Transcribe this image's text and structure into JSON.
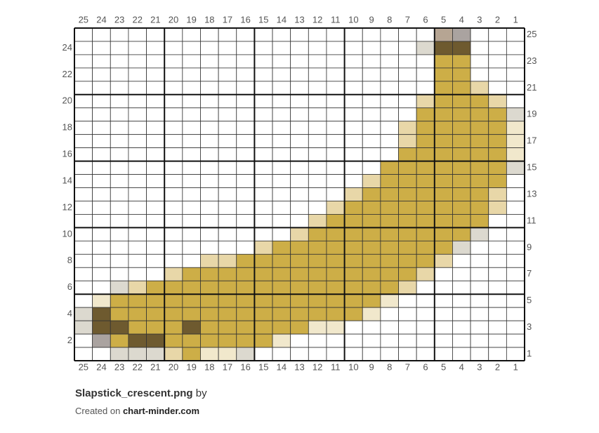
{
  "chart": {
    "columns": [
      25,
      24,
      23,
      22,
      21,
      20,
      19,
      18,
      17,
      16,
      15,
      14,
      13,
      12,
      11,
      10,
      9,
      8,
      7,
      6,
      5,
      4,
      3,
      2,
      1
    ],
    "rows_left": [
      24,
      22,
      20,
      18,
      16,
      14,
      12,
      10,
      8,
      6,
      4,
      2
    ],
    "rows_right": [
      25,
      23,
      21,
      19,
      17,
      15,
      13,
      11,
      9,
      7,
      5,
      3,
      1
    ],
    "palette": {
      ".": "#ffffff",
      "G": "#cdae47",
      "D": "#6e5a2f",
      "L": "#e8d7a8",
      "P": "#f1e8cc",
      "Y": "#dcd9cf",
      "T": "#b6a593",
      "S": "#aaa3a0"
    },
    "cells": [
      "....................TS...",
      "...................YDD...",
      "....................GG...",
      "....................GG...",
      "....................GGL..",
      "...................LGGGL.",
      "...................GGGGGY",
      "..................LGGGGGP",
      "..................LGGGGGP",
      "..................GGGGGGP",
      ".................GGGGGGGY",
      "................LGGGGGGG.",
      "...............LGGGGGGGL.",
      "..............LGGGGGGGGL.",
      ".............LGGGGGGGGG..",
      "............LGGGGGGGGGY..",
      "..........LGGGGGGGGGGY...",
      ".......LLGGGGGGGGGGGL....",
      ".....LGGGGGGGGGGGGGL.....",
      "..YLGGGGGGGGGGGGGGL......",
      ".PGGGGGGGGGGGGGGGP.......",
      "YDGGGGGGGGGGGGGGP........",
      "YDDGGGDGGGGGGPP..........",
      ".SGDDGGGGGGP.............",
      "..YYYLGPPY..............."
    ]
  },
  "footer": {
    "title": "Slapstick_crescent.png",
    "by": "by",
    "created": "Created on",
    "site": "chart-minder.com"
  }
}
